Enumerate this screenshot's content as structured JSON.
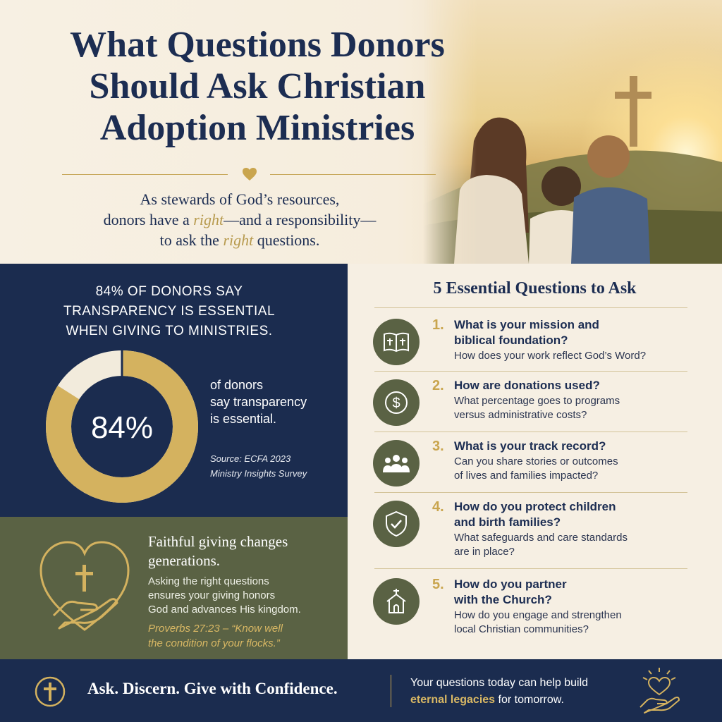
{
  "header": {
    "title_lines": [
      "What Questions Donors",
      "Should Ask Christian",
      "Adoption Ministries"
    ],
    "subtitle": {
      "line1": "As stewards of God’s resources,",
      "line2_pre": "donors have a ",
      "line2_em": "right",
      "line2_post": "—and a responsibility—",
      "line3_pre": "to ask the ",
      "line3_em": "right",
      "line3_post": " questions."
    }
  },
  "stat": {
    "heading": "84% of donors say transparency is essential when giving to ministries.",
    "percent": 84,
    "percent_label": "84%",
    "desc_lines": [
      "of donors",
      "say transparency",
      "is essential."
    ],
    "source_lines": [
      "Source: ECFA 2023",
      "Ministry Insights Survey"
    ]
  },
  "faith": {
    "title_lines": [
      "Faithful giving changes",
      "generations."
    ],
    "body_lines": [
      "Asking the right questions",
      "ensures your giving honors",
      "God and advances His kingdom."
    ],
    "quote_lines": [
      "Proverbs 27:23 – “Know well",
      "the condition of your flocks.”"
    ]
  },
  "questions": {
    "heading": "5 Essential Questions to Ask",
    "items": [
      {
        "num": "1.",
        "title_lines": [
          "What is your mission and",
          "biblical foundation?"
        ],
        "sub_lines": [
          "How does your work reflect God’s Word?"
        ],
        "icon": "bible-icon"
      },
      {
        "num": "2.",
        "title_lines": [
          "How are donations used?"
        ],
        "sub_lines": [
          "What percentage goes to programs",
          "versus administrative costs?"
        ],
        "icon": "dollar-icon"
      },
      {
        "num": "3.",
        "title_lines": [
          "What is your track record?"
        ],
        "sub_lines": [
          "Can you share stories or outcomes",
          "of lives and families impacted?"
        ],
        "icon": "people-icon"
      },
      {
        "num": "4.",
        "title_lines": [
          "How do you protect children",
          "and birth families?"
        ],
        "sub_lines": [
          "What safeguards and care standards",
          "are in place?"
        ],
        "icon": "shield-check-icon"
      },
      {
        "num": "5.",
        "title_lines": [
          "How do you partner",
          "with the Church?"
        ],
        "sub_lines": [
          "How do you engage and strengthen",
          "local Christian communities?"
        ],
        "icon": "church-icon"
      }
    ]
  },
  "footer": {
    "tagline": "Ask. Discern. Give with Confidence.",
    "msg_line1": "Your questions today can help build",
    "msg_bold": "eternal legacies",
    "msg_post": " for tomorrow."
  },
  "colors": {
    "navy": "#1b2c4f",
    "olive": "#5a6244",
    "gold": "#c9a54e",
    "cream": "#f6efe3"
  }
}
